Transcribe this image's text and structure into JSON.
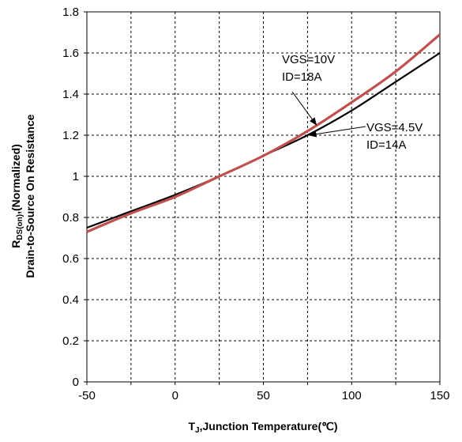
{
  "chart_data": {
    "type": "line",
    "xlim": [
      -50,
      150
    ],
    "ylim": [
      0,
      1.8
    ],
    "x_ticks": [
      -50,
      -25,
      0,
      25,
      50,
      75,
      100,
      125,
      150
    ],
    "x_tick_labels": [
      "-50",
      "0",
      "50",
      "100",
      "150"
    ],
    "y_ticks": [
      0,
      0.2,
      0.4,
      0.6,
      0.8,
      1,
      1.2,
      1.4,
      1.6,
      1.8
    ],
    "y_tick_labels": [
      "0",
      "0.2",
      "0.4",
      "0.6",
      "0.8",
      "1",
      "1.2",
      "1.4",
      "1.6",
      "1.8"
    ],
    "grid": true,
    "xlabel": {
      "main": "T",
      "sub": "J",
      "rest": ",Junction Temperature(℃)"
    },
    "ylabel": {
      "line1_main": "R",
      "line1_sub": "DS(on)",
      "line1_rest": ",(Normalized)",
      "line2": "Drain-to-Source On Resistance"
    },
    "series": [
      {
        "color": "#000000",
        "x": [
          -50,
          -25,
          0,
          25,
          50,
          75,
          100,
          125,
          150
        ],
        "y": [
          0.75,
          0.83,
          0.91,
          1.0,
          1.1,
          1.2,
          1.32,
          1.46,
          1.6
        ]
      },
      {
        "color": "#c0504d",
        "x": [
          -50,
          -25,
          0,
          25,
          50,
          75,
          100,
          125,
          150
        ],
        "y": [
          0.73,
          0.82,
          0.9,
          1.0,
          1.1,
          1.22,
          1.36,
          1.51,
          1.69
        ]
      }
    ],
    "annotations": [
      {
        "lines": [
          "VGS=10V",
          "ID=18A"
        ],
        "target_x": 80,
        "target_y": 1.25
      },
      {
        "lines": [
          "VGS=4.5V",
          "ID=14A"
        ],
        "target_x": 76,
        "target_y": 1.2
      }
    ]
  }
}
